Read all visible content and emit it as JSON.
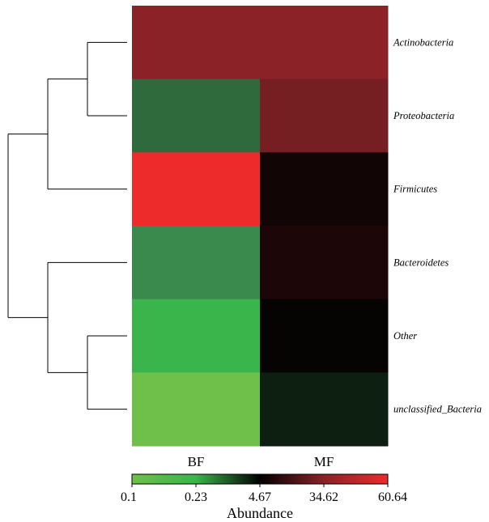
{
  "chart_data": {
    "type": "heatmap",
    "columns": [
      "BF",
      "MF"
    ],
    "rows": [
      "Actinobacteria",
      "Proteobacteria",
      "Firmicutes",
      "Bacteroidetes",
      "Other",
      "unclassified_Bacteria"
    ],
    "cell_colors": [
      [
        "#8a2228",
        "#8a2228"
      ],
      [
        "#2e6a3c",
        "#751f22"
      ],
      [
        "#ee2b2b",
        "#120506"
      ],
      [
        "#3a8a4e",
        "#1d0607"
      ],
      [
        "#3ab54b",
        "#060303"
      ],
      [
        "#6ec04a",
        "#0d1f10"
      ]
    ],
    "colorbar": {
      "title": "Abundance",
      "tick_labels": [
        "0.1",
        "0.23",
        "4.67",
        "34.62",
        "60.64"
      ],
      "tick_values": [
        0.1,
        0.23,
        4.67,
        34.62,
        60.64
      ],
      "gradient_colors": [
        "#6ec04a",
        "#3ab54b",
        "#000000",
        "#8a2228",
        "#ee2b2b"
      ]
    },
    "dendrogram": {
      "tree": [
        [
          [
            "Actinobacteria",
            "Proteobacteria"
          ],
          "Firmicutes"
        ],
        [
          "Bacteroidetes",
          [
            "Other",
            "unclassified_Bacteria"
          ]
        ]
      ]
    }
  }
}
